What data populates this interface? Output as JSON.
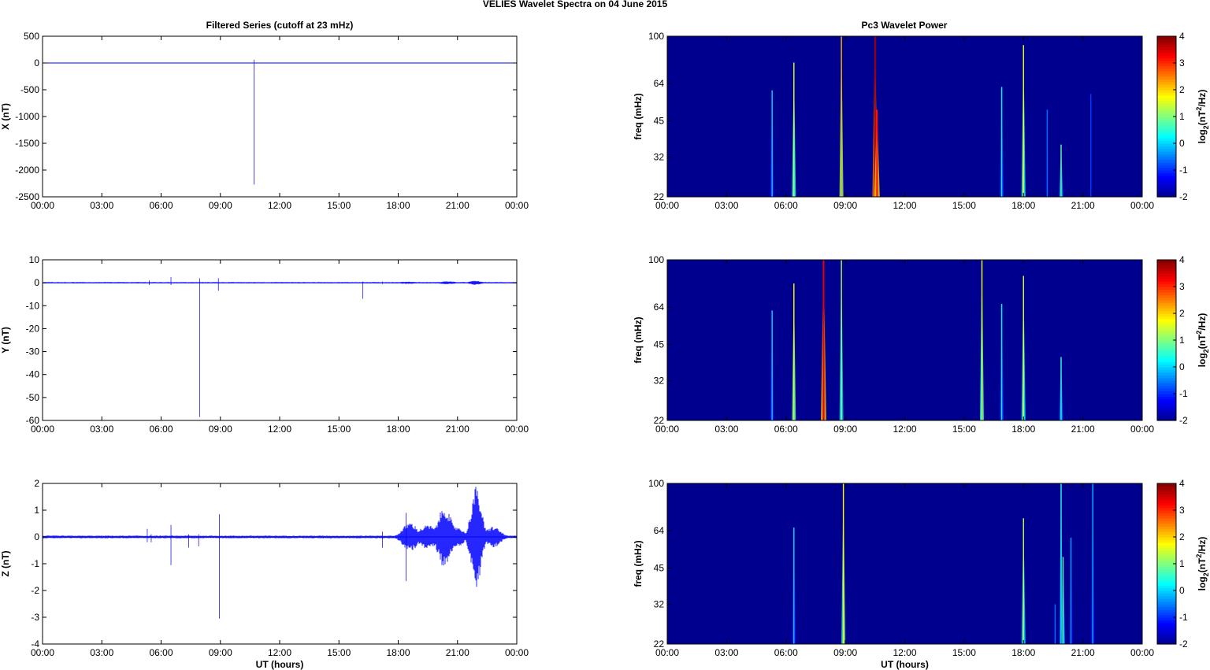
{
  "figure": {
    "title": "VELIES Wavelet Spectra on 04 June      2015",
    "left_title": "Filtered Series (cutoff at 23 mHz)",
    "right_title": "Pc3 Wavelet Power"
  },
  "colors": {
    "series": "#0000ff",
    "spectrogram_background": "#00008f",
    "colormap": [
      "#00008f",
      "#0000ff",
      "#0080ff",
      "#00ffff",
      "#80ff80",
      "#ffff00",
      "#ff8000",
      "#ff0000",
      "#800000"
    ]
  },
  "chart_data": [
    {
      "type": "line",
      "panel": "left-1",
      "xlabel": "",
      "ylabel": "X (nT)",
      "xlim": [
        0,
        24
      ],
      "ylim": [
        -2500,
        500
      ],
      "x_ticks": [
        "00:00",
        "03:00",
        "06:00",
        "09:00",
        "12:00",
        "15:00",
        "18:00",
        "21:00",
        "00:00"
      ],
      "y_ticks": [
        500,
        0,
        -500,
        -1000,
        -1500,
        -2000,
        -2500
      ],
      "baseline": 0,
      "noise_amplitude": 1,
      "grid": false,
      "events": [
        {
          "t": 10.7,
          "min": -2270,
          "max": 60
        }
      ]
    },
    {
      "type": "line",
      "panel": "left-2",
      "xlabel": "",
      "ylabel": "Y (nT)",
      "xlim": [
        0,
        24
      ],
      "ylim": [
        -60,
        10
      ],
      "x_ticks": [
        "00:00",
        "03:00",
        "06:00",
        "09:00",
        "12:00",
        "15:00",
        "18:00",
        "21:00",
        "00:00"
      ],
      "y_ticks": [
        10,
        0,
        -10,
        -20,
        -30,
        -40,
        -50,
        -60
      ],
      "baseline": 0,
      "noise_amplitude": 0.3,
      "grid": false,
      "events": [
        {
          "t": 5.4,
          "min": -1,
          "max": 1
        },
        {
          "t": 6.5,
          "min": -1,
          "max": 2.5
        },
        {
          "t": 7.95,
          "min": -58.5,
          "max": 2
        },
        {
          "t": 8.9,
          "min": -3.5,
          "max": 2
        },
        {
          "t": 16.2,
          "min": -7,
          "max": 0.5
        },
        {
          "t": 17.2,
          "min": -0.5,
          "max": 0.5
        }
      ],
      "bursts": [
        {
          "t": 18.5,
          "amplitude": 0.5,
          "width": 0.6
        },
        {
          "t": 20.5,
          "amplitude": 0.7,
          "width": 0.5
        },
        {
          "t": 21.9,
          "amplitude": 0.9,
          "width": 0.4
        }
      ]
    },
    {
      "type": "line",
      "panel": "left-3",
      "xlabel": "UT (hours)",
      "ylabel": "Z (nT)",
      "xlim": [
        0,
        24
      ],
      "ylim": [
        -4,
        2
      ],
      "x_ticks": [
        "00:00",
        "03:00",
        "06:00",
        "09:00",
        "12:00",
        "15:00",
        "18:00",
        "21:00",
        "00:00"
      ],
      "y_ticks": [
        2,
        1,
        0,
        -1,
        -2,
        -3,
        -4
      ],
      "baseline": 0,
      "noise_amplitude": 0.05,
      "grid": false,
      "events": [
        {
          "t": 5.3,
          "min": -0.2,
          "max": 0.3
        },
        {
          "t": 5.5,
          "min": -0.2,
          "max": 0.1
        },
        {
          "t": 6.5,
          "min": -1.05,
          "max": 0.45
        },
        {
          "t": 7.4,
          "min": -0.4,
          "max": 0.1
        },
        {
          "t": 7.9,
          "min": -0.35,
          "max": 0.1
        },
        {
          "t": 8.95,
          "min": -3.05,
          "max": 0.85
        },
        {
          "t": 17.2,
          "min": -0.4,
          "max": 0.2
        },
        {
          "t": 18.4,
          "min": -1.65,
          "max": 0.9
        }
      ],
      "bursts": [
        {
          "t": 18.6,
          "amplitude": 0.55,
          "width": 0.5
        },
        {
          "t": 19.5,
          "amplitude": 0.45,
          "width": 0.6
        },
        {
          "t": 20.35,
          "amplitude": 1.15,
          "width": 0.45
        },
        {
          "t": 21.0,
          "amplitude": 0.4,
          "width": 0.4
        },
        {
          "t": 21.95,
          "amplitude": 1.9,
          "width": 0.35
        },
        {
          "t": 22.8,
          "amplitude": 0.4,
          "width": 0.5
        }
      ]
    },
    {
      "type": "heatmap",
      "panel": "right-1",
      "xlabel": "",
      "ylabel": "freq (mHz)",
      "xlim": [
        0,
        24
      ],
      "ylim": [
        22,
        100
      ],
      "y_scale": "log",
      "x_ticks": [
        "00:00",
        "03:00",
        "06:00",
        "09:00",
        "12:00",
        "15:00",
        "18:00",
        "21:00",
        "00:00"
      ],
      "y_ticks": [
        100,
        64,
        45,
        32,
        22
      ],
      "colorbar_label": "log2(nT²/Hz)",
      "colorbar_ticks": [
        4,
        3,
        2,
        1,
        0,
        -1,
        -2
      ],
      "clim": [
        -2,
        4
      ],
      "streaks": [
        {
          "t": 5.3,
          "top": 60,
          "value": 0.0
        },
        {
          "t": 6.4,
          "top": 78,
          "value": 1.5
        },
        {
          "t": 8.8,
          "top": 100,
          "value": 2.2
        },
        {
          "t": 10.5,
          "top": 100,
          "value": 3.8
        },
        {
          "t": 10.6,
          "top": 50,
          "value": 3.2
        },
        {
          "t": 16.9,
          "top": 62,
          "value": 0.2
        },
        {
          "t": 18.0,
          "top": 92,
          "value": 1.6
        },
        {
          "t": 19.2,
          "top": 50,
          "value": -0.6
        },
        {
          "t": 19.9,
          "top": 36,
          "value": 0.8
        },
        {
          "t": 21.4,
          "top": 58,
          "value": -0.9
        }
      ]
    },
    {
      "type": "heatmap",
      "panel": "right-2",
      "xlabel": "",
      "ylabel": "freq (mHz)",
      "xlim": [
        0,
        24
      ],
      "ylim": [
        22,
        100
      ],
      "y_scale": "log",
      "x_ticks": [
        "00:00",
        "03:00",
        "06:00",
        "09:00",
        "12:00",
        "15:00",
        "18:00",
        "21:00",
        "00:00"
      ],
      "y_ticks": [
        100,
        64,
        45,
        32,
        22
      ],
      "colorbar_label": "log2(nT²/Hz)",
      "colorbar_ticks": [
        4,
        3,
        2,
        1,
        0,
        -1,
        -2
      ],
      "clim": [
        -2,
        4
      ],
      "streaks": [
        {
          "t": 5.3,
          "top": 62,
          "value": 0.0
        },
        {
          "t": 6.4,
          "top": 80,
          "value": 1.8
        },
        {
          "t": 7.9,
          "top": 100,
          "value": 3.4
        },
        {
          "t": 8.8,
          "top": 100,
          "value": 1.2
        },
        {
          "t": 15.9,
          "top": 100,
          "value": 1.6
        },
        {
          "t": 16.9,
          "top": 66,
          "value": 0.2
        },
        {
          "t": 18.0,
          "top": 86,
          "value": 1.5
        },
        {
          "t": 19.9,
          "top": 40,
          "value": 0.5
        }
      ]
    },
    {
      "type": "heatmap",
      "panel": "right-3",
      "xlabel": "UT (hours)",
      "ylabel": "freq (mHz)",
      "xlim": [
        0,
        24
      ],
      "ylim": [
        22,
        100
      ],
      "y_scale": "log",
      "x_ticks": [
        "00:00",
        "03:00",
        "06:00",
        "09:00",
        "12:00",
        "15:00",
        "18:00",
        "21:00",
        "00:00"
      ],
      "y_ticks": [
        100,
        64,
        45,
        32,
        22
      ],
      "colorbar_label": "log2(nT²/Hz)",
      "colorbar_ticks": [
        4,
        3,
        2,
        1,
        0,
        -1,
        -2
      ],
      "clim": [
        -2,
        4
      ],
      "streaks": [
        {
          "t": 6.4,
          "top": 66,
          "value": 0.0
        },
        {
          "t": 8.9,
          "top": 100,
          "value": 1.8
        },
        {
          "t": 18.0,
          "top": 72,
          "value": 1.3
        },
        {
          "t": 19.6,
          "top": 32,
          "value": -0.6
        },
        {
          "t": 19.9,
          "top": 100,
          "value": 0.4
        },
        {
          "t": 20.0,
          "top": 50,
          "value": 0.8
        },
        {
          "t": 20.4,
          "top": 60,
          "value": -0.3
        },
        {
          "t": 21.5,
          "top": 100,
          "value": -0.2
        }
      ]
    }
  ]
}
